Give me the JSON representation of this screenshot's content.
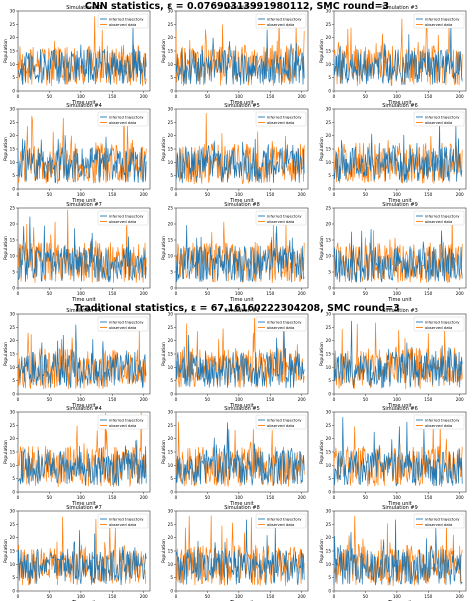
{
  "figure": {
    "sections": [
      {
        "title_text": "CNN statistics, ε = 0.0769031399198011​2, SMC round=3"
      },
      {
        "title_text": "Traditional statistics, ε = 67.1616022230420​8, SMC round=3"
      }
    ]
  },
  "colors": {
    "inferred": "#1f77b4",
    "observed": "#ff7f0e",
    "axis": "#333333"
  },
  "chart_data": [
    {
      "type": "line",
      "title": "CNN statistics, ε = 0.07690313991980112, SMC round=3",
      "subplots": [
        {
          "title": "Simulation #1",
          "xlabel": "Time unit",
          "ylabel": "Population",
          "xlim": [
            0,
            210
          ],
          "ylim": [
            0,
            30
          ],
          "series": [
            {
              "name": "inferred trajectory"
            },
            {
              "name": "observed data"
            }
          ]
        },
        {
          "title": "Simulation #2",
          "xlabel": "Time unit",
          "ylabel": "Population",
          "xlim": [
            0,
            210
          ],
          "ylim": [
            0,
            30
          ],
          "series": [
            {
              "name": "inferred trajectory"
            },
            {
              "name": "observed data"
            }
          ]
        },
        {
          "title": "Simulation #3",
          "xlabel": "Time unit",
          "ylabel": "Population",
          "xlim": [
            0,
            210
          ],
          "ylim": [
            0,
            30
          ],
          "series": [
            {
              "name": "inferred trajectory"
            },
            {
              "name": "observed data"
            }
          ]
        },
        {
          "title": "Simulation #4",
          "xlabel": "Time unit",
          "ylabel": "Population",
          "xlim": [
            0,
            210
          ],
          "ylim": [
            0,
            30
          ],
          "series": [
            {
              "name": "inferred trajectory"
            },
            {
              "name": "observed data"
            }
          ]
        },
        {
          "title": "Simulation #5",
          "xlabel": "Time unit",
          "ylabel": "Population",
          "xlim": [
            0,
            210
          ],
          "ylim": [
            0,
            30
          ],
          "series": [
            {
              "name": "inferred trajectory"
            },
            {
              "name": "observed data"
            }
          ]
        },
        {
          "title": "Simulation #6",
          "xlabel": "Time unit",
          "ylabel": "Population",
          "xlim": [
            0,
            210
          ],
          "ylim": [
            0,
            30
          ],
          "series": [
            {
              "name": "inferred trajectory"
            },
            {
              "name": "observed data"
            }
          ]
        },
        {
          "title": "Simulation #7",
          "xlabel": "Time unit",
          "ylabel": "Population",
          "xlim": [
            0,
            210
          ],
          "ylim": [
            0,
            25
          ],
          "series": [
            {
              "name": "inferred trajectory"
            },
            {
              "name": "observed data"
            }
          ]
        },
        {
          "title": "Simulation #8",
          "xlabel": "Time unit",
          "ylabel": "Population",
          "xlim": [
            0,
            210
          ],
          "ylim": [
            0,
            25
          ],
          "series": [
            {
              "name": "inferred trajectory"
            },
            {
              "name": "observed data"
            }
          ]
        },
        {
          "title": "Simulation #9",
          "xlabel": "Time unit",
          "ylabel": "Population",
          "xlim": [
            0,
            210
          ],
          "ylim": [
            0,
            25
          ],
          "series": [
            {
              "name": "inferred trajectory"
            },
            {
              "name": "observed data"
            }
          ]
        }
      ]
    },
    {
      "type": "line",
      "title": "Traditional statistics, ε = 67.16160222304208, SMC round=3",
      "subplots": [
        {
          "title": "Simulation #1",
          "xlabel": "Time unit",
          "ylabel": "Population",
          "xlim": [
            0,
            210
          ],
          "ylim": [
            0,
            30
          ],
          "series": [
            {
              "name": "inferred trajectory"
            },
            {
              "name": "observed data"
            }
          ]
        },
        {
          "title": "Simulation #2",
          "xlabel": "Time unit",
          "ylabel": "Population",
          "xlim": [
            0,
            210
          ],
          "ylim": [
            0,
            30
          ],
          "series": [
            {
              "name": "inferred trajectory"
            },
            {
              "name": "observed data"
            }
          ]
        },
        {
          "title": "Simulation #3",
          "xlabel": "Time unit",
          "ylabel": "Population",
          "xlim": [
            0,
            210
          ],
          "ylim": [
            0,
            30
          ],
          "series": [
            {
              "name": "inferred trajectory"
            },
            {
              "name": "observed data"
            }
          ]
        },
        {
          "title": "Simulation #4",
          "xlabel": "Time unit",
          "ylabel": "Population",
          "xlim": [
            0,
            210
          ],
          "ylim": [
            0,
            30
          ],
          "series": [
            {
              "name": "inferred trajectory"
            },
            {
              "name": "observed data"
            }
          ]
        },
        {
          "title": "Simulation #5",
          "xlabel": "Time unit",
          "ylabel": "Population",
          "xlim": [
            0,
            210
          ],
          "ylim": [
            0,
            30
          ],
          "series": [
            {
              "name": "inferred trajectory"
            },
            {
              "name": "observed data"
            }
          ]
        },
        {
          "title": "Simulation #6",
          "xlabel": "Time unit",
          "ylabel": "Population",
          "xlim": [
            0,
            210
          ],
          "ylim": [
            0,
            30
          ],
          "series": [
            {
              "name": "inferred trajectory"
            },
            {
              "name": "observed data"
            }
          ]
        },
        {
          "title": "Simulation #7",
          "xlabel": "Time unit",
          "ylabel": "Population",
          "xlim": [
            0,
            210
          ],
          "ylim": [
            0,
            30
          ],
          "series": [
            {
              "name": "inferred trajectory"
            },
            {
              "name": "observed data"
            }
          ]
        },
        {
          "title": "Simulation #8",
          "xlabel": "Time unit",
          "ylabel": "Population",
          "xlim": [
            0,
            210
          ],
          "ylim": [
            0,
            30
          ],
          "series": [
            {
              "name": "inferred trajectory"
            },
            {
              "name": "observed data"
            }
          ]
        },
        {
          "title": "Simulation #9",
          "xlabel": "Time unit",
          "ylabel": "Population",
          "xlim": [
            0,
            210
          ],
          "ylim": [
            0,
            30
          ],
          "series": [
            {
              "name": "inferred trajectory"
            },
            {
              "name": "observed data"
            }
          ]
        }
      ]
    }
  ]
}
